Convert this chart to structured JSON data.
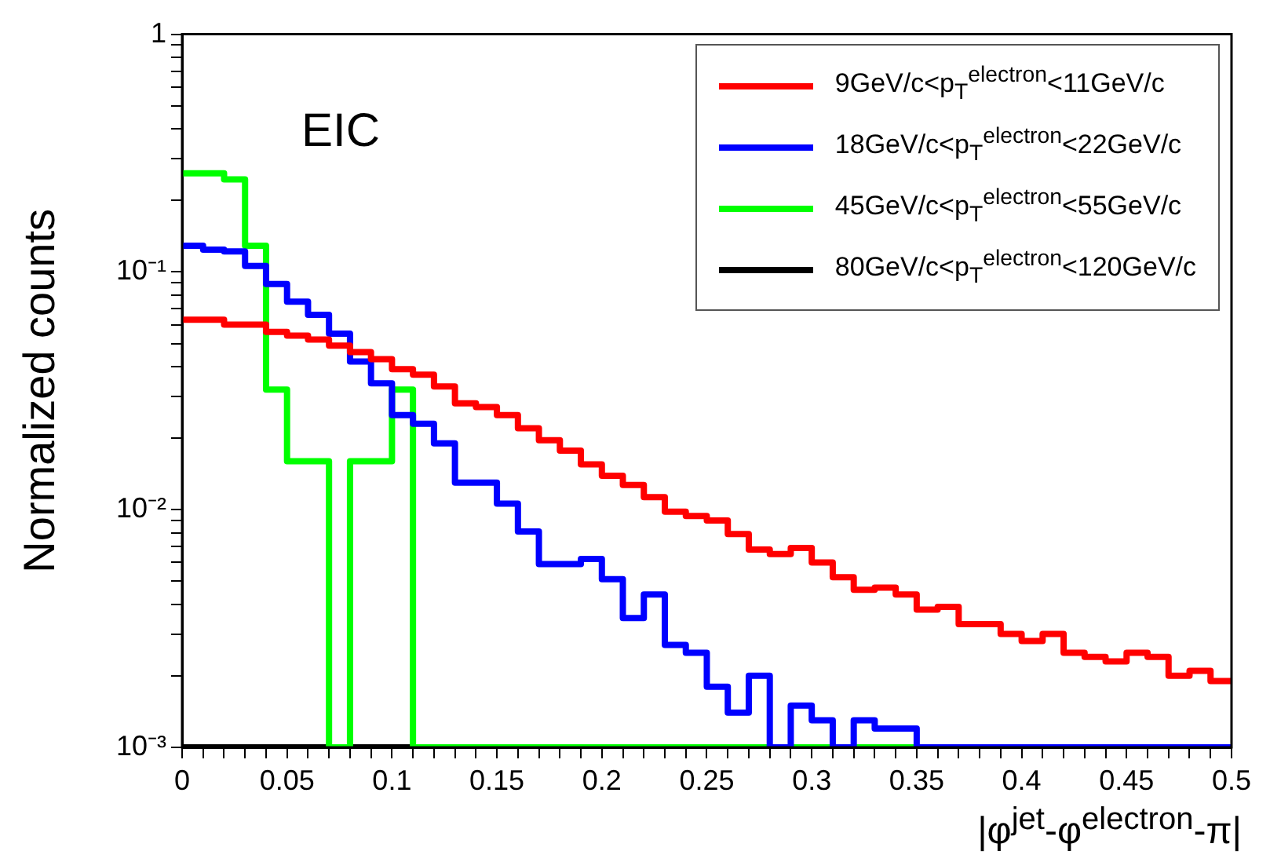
{
  "chart_data": {
    "type": "histogram",
    "xlabel": "|φ$^{jet}$-φ$^{electron}$-π|",
    "ylabel": "Normalized counts",
    "annotations": [
      "EIC"
    ],
    "bins": [
      0,
      0.01,
      0.02,
      0.03,
      0.04,
      0.05,
      0.06,
      0.07,
      0.08,
      0.09,
      0.1,
      0.11,
      0.12,
      0.13,
      0.14,
      0.15,
      0.16,
      0.17,
      0.18,
      0.19,
      0.2,
      0.21,
      0.22,
      0.23,
      0.24,
      0.25,
      0.26,
      0.27,
      0.28,
      0.29,
      0.3,
      0.31,
      0.32,
      0.33,
      0.34,
      0.35,
      0.36,
      0.37,
      0.38,
      0.39,
      0.4,
      0.41,
      0.42,
      0.43,
      0.44,
      0.45,
      0.46,
      0.47,
      0.48,
      0.49,
      0.5
    ],
    "series": [
      {
        "name": "9GeV/c<p$_{T}$$^{electron}$<11GeV/c",
        "color": "#ff0000",
        "values": [
          0.063,
          0.063,
          0.06,
          0.06,
          0.056,
          0.054,
          0.052,
          0.049,
          0.046,
          0.043,
          0.039,
          0.037,
          0.033,
          0.028,
          0.027,
          0.025,
          0.022,
          0.0196,
          0.0177,
          0.0155,
          0.0139,
          0.0127,
          0.0113,
          0.0098,
          0.0094,
          0.009,
          0.0079,
          0.0068,
          0.0065,
          0.0069,
          0.006,
          0.0052,
          0.0046,
          0.0047,
          0.0044,
          0.0038,
          0.0039,
          0.0033,
          0.0033,
          0.003,
          0.0028,
          0.003,
          0.0025,
          0.0024,
          0.0023,
          0.0025,
          0.0024,
          0.002,
          0.0021,
          0.0019
        ]
      },
      {
        "name": "18GeV/c<p$_{T}$$^{electron}$<22GeV/c",
        "color": "#0000ff",
        "values": [
          0.129,
          0.124,
          0.122,
          0.106,
          0.089,
          0.075,
          0.066,
          0.055,
          0.042,
          0.034,
          0.025,
          0.023,
          0.019,
          0.013,
          0.013,
          0.0106,
          0.0081,
          0.0059,
          0.0059,
          0.0062,
          0.0051,
          0.0035,
          0.0044,
          0.0027,
          0.0025,
          0.0018,
          0.0014,
          0.002,
          null,
          0.0015,
          0.0013,
          null,
          0.0013,
          0.0012,
          0.0012,
          null,
          null,
          null,
          null,
          null,
          null,
          null,
          null,
          null,
          null,
          null,
          null,
          null,
          null,
          null
        ]
      },
      {
        "name": "45GeV/c<p$_{T}$$^{electron}$<55GeV/c",
        "color": "#00ff00",
        "values": [
          0.26,
          0.26,
          0.245,
          0.129,
          0.032,
          0.016,
          0.016,
          null,
          0.016,
          0.016,
          0.032,
          null,
          null,
          null,
          null,
          null,
          null,
          null,
          null,
          null,
          null,
          null,
          null,
          null,
          null,
          null,
          null,
          null,
          null,
          null,
          null,
          null,
          null,
          null,
          null,
          null,
          null,
          null,
          null,
          null,
          null,
          null,
          null,
          null,
          null,
          null,
          null,
          null,
          null,
          null
        ]
      },
      {
        "name": "80GeV/c<p$_{T}$$^{electron}$<120GeV/c",
        "color": "#000000",
        "values": [
          null,
          null,
          null,
          null,
          null,
          null,
          null,
          null,
          null,
          null,
          null,
          null,
          null,
          null,
          null,
          null,
          null,
          null,
          null,
          null,
          null,
          null,
          null,
          null,
          null,
          null,
          null,
          null,
          null,
          null,
          null,
          null,
          null,
          null,
          null,
          null,
          null,
          null,
          null,
          null,
          null,
          null,
          null,
          null,
          null,
          null,
          null,
          null,
          null,
          null
        ]
      }
    ],
    "log": "y",
    "legend": "top right",
    "xlim": [
      0,
      0.5
    ],
    "xticks": [
      0,
      {
        "value": 0.01,
        "label": null
      },
      {
        "value": 0.02,
        "label": null
      },
      {
        "value": 0.03,
        "label": null
      },
      {
        "value": 0.04,
        "label": null
      },
      0.05,
      {
        "value": 0.06,
        "label": null
      },
      {
        "value": 0.07,
        "label": null
      },
      {
        "value": 0.08,
        "label": null
      },
      {
        "value": 0.09,
        "label": null
      },
      0.1,
      {
        "value": 0.11,
        "label": null
      },
      {
        "value": 0.12,
        "label": null
      },
      {
        "value": 0.13,
        "label": null
      },
      {
        "value": 0.14,
        "label": null
      },
      0.15,
      {
        "value": 0.16,
        "label": null
      },
      {
        "value": 0.17,
        "label": null
      },
      {
        "value": 0.18,
        "label": null
      },
      {
        "value": 0.19,
        "label": null
      },
      0.2,
      {
        "value": 0.21,
        "label": null
      },
      {
        "value": 0.22,
        "label": null
      },
      {
        "value": 0.23,
        "label": null
      },
      {
        "value": 0.24,
        "label": null
      },
      0.25,
      {
        "value": 0.26,
        "label": null
      },
      {
        "value": 0.27,
        "label": null
      },
      {
        "value": 0.28,
        "label": null
      },
      {
        "value": 0.29,
        "label": null
      },
      0.3,
      {
        "value": 0.31,
        "label": null
      },
      {
        "value": 0.32,
        "label": null
      },
      {
        "value": 0.33,
        "label": null
      },
      {
        "value": 0.34,
        "label": null
      },
      0.35,
      {
        "value": 0.36,
        "label": null
      },
      {
        "value": 0.37,
        "label": null
      },
      {
        "value": 0.38,
        "label": null
      },
      {
        "value": 0.39,
        "label": null
      },
      0.4,
      {
        "value": 0.41,
        "label": null
      },
      {
        "value": 0.42,
        "label": null
      },
      {
        "value": 0.43,
        "label": null
      },
      {
        "value": 0.44,
        "label": null
      },
      0.45,
      {
        "value": 0.46,
        "label": null
      },
      {
        "value": 0.47,
        "label": null
      },
      {
        "value": 0.48,
        "label": null
      },
      {
        "value": 0.49,
        "label": null
      },
      0.5
    ],
    "ylim": [
      0.001,
      1
    ],
    "yticks": [
      {
        "value": 0.001,
        "label": "10⁻³"
      },
      {
        "value": 0.002,
        "label": null
      },
      {
        "value": 0.003,
        "label": null
      },
      {
        "value": 0.004,
        "label": null
      },
      {
        "value": 0.005,
        "label": null
      },
      {
        "value": 0.006,
        "label": null
      },
      {
        "value": 0.007,
        "label": null
      },
      {
        "value": 0.008,
        "label": null
      },
      {
        "value": 0.009,
        "label": null
      },
      {
        "value": 0.01,
        "label": "10⁻²"
      },
      {
        "value": 0.02,
        "label": null
      },
      {
        "value": 0.03,
        "label": null
      },
      {
        "value": 0.04,
        "label": null
      },
      {
        "value": 0.05,
        "label": null
      },
      {
        "value": 0.06,
        "label": null
      },
      {
        "value": 0.07,
        "label": null
      },
      {
        "value": 0.08,
        "label": null
      },
      {
        "value": 0.09,
        "label": null
      },
      {
        "value": 0.1,
        "label": "10⁻¹"
      },
      {
        "value": 0.2,
        "label": null
      },
      {
        "value": 0.3,
        "label": null
      },
      {
        "value": 0.4,
        "label": null
      },
      {
        "value": 0.5,
        "label": null
      },
      {
        "value": 0.6,
        "label": null
      },
      {
        "value": 0.7,
        "label": null
      },
      {
        "value": 0.8,
        "label": null
      },
      {
        "value": 0.9,
        "label": null
      },
      1
    ]
  }
}
